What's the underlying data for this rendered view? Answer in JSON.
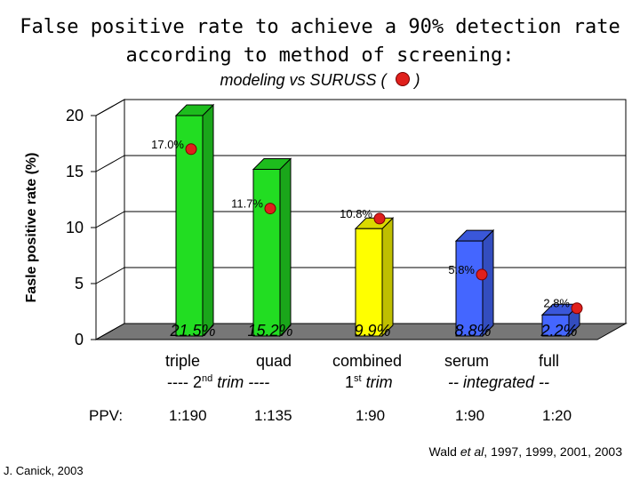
{
  "title_line1": "False positive rate to achieve a 90% detection rate",
  "title_line2": "according to method of screening:",
  "subtitle_left": "modeling vs SURUSS (",
  "subtitle_right": ")",
  "chart_data": {
    "type": "bar",
    "ylabel": "Fasle positive rate (%)",
    "ylim": [
      0,
      20
    ],
    "yticks": [
      "0",
      "5",
      "10",
      "15",
      "20"
    ],
    "categories": [
      "triple",
      "quad",
      "combined",
      "serum",
      "full"
    ],
    "values": [
      21.5,
      15.2,
      9.9,
      8.8,
      2.2
    ],
    "value_labels": [
      "21.5%",
      "15.2%",
      "9.9%",
      "8.8%",
      "2.2%"
    ],
    "bar_colors": [
      "#22dd22",
      "#22dd22",
      "#ffff00",
      "#4466ff",
      "#4466ff"
    ],
    "suruss_series": {
      "values": [
        17.0,
        11.7,
        10.8,
        5.8,
        2.8
      ],
      "labels": [
        "17.0%",
        "11.7%",
        "10.8%",
        "5.8%",
        "2.8%"
      ],
      "marker_color": "#e0201c"
    },
    "category_groups": {
      "triple": "triple",
      "quad": "quad",
      "second_trim": "---- 2",
      "second_sup": "nd",
      "second_rest": " trim ----",
      "combined": "combined",
      "first_trim": "1",
      "first_sup": "st",
      "first_rest": " trim",
      "serum": "serum",
      "full": "full",
      "integrated": "-- integrated --"
    },
    "ppv_label": "PPV:",
    "ppv": [
      "1:190",
      "1:135",
      "1:90",
      "1:90",
      "1:20"
    ]
  },
  "citation_pre": "Wald ",
  "citation_etal": "et al",
  "citation_post": ", 1997, 1999, 2001, 2003",
  "credit": "J. Canick, 2003"
}
